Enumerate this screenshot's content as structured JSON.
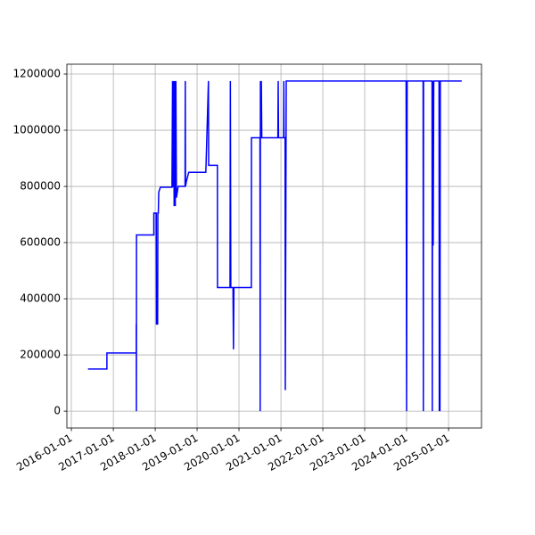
{
  "chart_data": {
    "type": "line",
    "x": [
      "2016-05-25",
      "2016-11-06",
      "2016-11-06",
      "2017-07-20",
      "2017-07-20",
      "2017-07-21",
      "2017-07-22",
      "2017-12-20",
      "2017-12-20",
      "2018-01-10",
      "2018-01-12",
      "2018-01-22",
      "2018-01-24",
      "2018-01-28",
      "2018-02-01",
      "2018-02-15",
      "2018-05-27",
      "2018-06-01",
      "2018-06-05",
      "2018-06-10",
      "2018-06-15",
      "2018-06-20",
      "2018-06-25",
      "2018-06-30",
      "2018-07-05",
      "2018-07-20",
      "2018-09-18",
      "2018-09-20",
      "2018-09-22",
      "2018-10-01",
      "2018-10-20",
      "2019-03-18",
      "2019-03-20",
      "2019-04-10",
      "2019-04-12",
      "2019-06-27",
      "2019-06-28",
      "2019-10-15",
      "2019-10-18",
      "2019-10-22",
      "2019-11-10",
      "2019-11-14",
      "2019-11-18",
      "2020-04-18",
      "2020-04-19",
      "2020-07-02",
      "2020-07-04",
      "2020-07-06",
      "2020-07-10",
      "2020-07-14",
      "2020-07-18",
      "2020-12-05",
      "2020-12-08",
      "2020-12-11",
      "2021-01-24",
      "2021-01-26",
      "2021-01-28",
      "2021-02-06",
      "2021-02-08",
      "2021-02-12",
      "2021-02-16",
      "2023-12-28",
      "2024-01-01",
      "2024-01-06",
      "2024-05-24",
      "2024-05-26",
      "2024-05-28",
      "2024-08-10",
      "2024-08-12",
      "2024-08-15",
      "2024-08-20",
      "2024-08-25",
      "2024-10-10",
      "2024-10-12",
      "2024-10-15",
      "2024-10-18",
      "2024-10-21",
      "2025-04-26"
    ],
    "series": [
      {
        "name": "value",
        "color": "#0000ff",
        "values": [
          150000,
          150000,
          207000,
          207000,
          310000,
          0,
          627000,
          627000,
          705000,
          705000,
          310000,
          310000,
          705000,
          705000,
          780000,
          797000,
          797000,
          1175000,
          797000,
          1175000,
          730000,
          1175000,
          730000,
          1175000,
          760000,
          800000,
          800000,
          1175000,
          800000,
          820000,
          850000,
          850000,
          875000,
          1175000,
          875000,
          875000,
          440000,
          440000,
          1175000,
          440000,
          440000,
          220000,
          440000,
          440000,
          973000,
          973000,
          0,
          1175000,
          973000,
          1175000,
          973000,
          973000,
          1175000,
          973000,
          973000,
          1175000,
          973000,
          973000,
          75000,
          620000,
          1175000,
          1175000,
          0,
          1175000,
          1175000,
          0,
          1175000,
          1175000,
          0,
          1175000,
          590000,
          1175000,
          1175000,
          0,
          1175000,
          0,
          1175000,
          1175000
        ]
      }
    ],
    "xlim": [
      "2015-11-23",
      "2025-10-15"
    ],
    "xticks": [
      "2016-01-01",
      "2017-01-01",
      "2018-01-01",
      "2019-01-01",
      "2020-01-01",
      "2021-01-01",
      "2022-01-01",
      "2023-01-01",
      "2024-01-01",
      "2025-01-01"
    ],
    "ylim": [
      -60000,
      1235000
    ],
    "yticks": [
      0,
      200000,
      400000,
      600000,
      800000,
      1000000,
      1200000
    ],
    "grid": true
  }
}
